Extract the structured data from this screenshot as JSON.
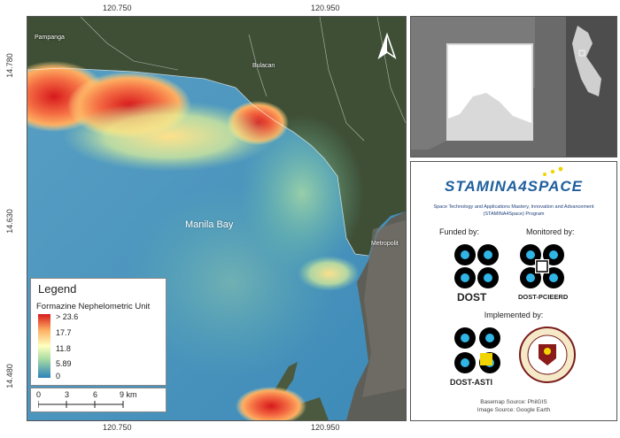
{
  "map": {
    "water_label": "Manila Bay",
    "towns": [
      "Pampanga",
      "Bulacan",
      "Metropolit"
    ]
  },
  "axes": {
    "top_ticks": [
      "120.750",
      "120.950"
    ],
    "bottom_ticks": [
      "120.750",
      "120.950"
    ],
    "left_ticks": [
      "14.780",
      "14.630",
      "14.480"
    ]
  },
  "legend": {
    "title": "Legend",
    "unit": "Formazine Nephelometric Unit",
    "values": [
      "> 23.6",
      "17.7",
      "11.8",
      "5.89",
      "0"
    ]
  },
  "scalebar": {
    "labels": [
      "0",
      "3",
      "6",
      "9 km"
    ]
  },
  "info": {
    "logo_text": "STAMINA4SPACE",
    "program_line1": "Space Technology and Applications Mastery, Innovation and Advancement",
    "program_line2": "(STAMINA4Space) Program",
    "funded_by": "Funded by:",
    "monitored_by": "Monitored by:",
    "dost": "DOST",
    "dost_pcieerd": "DOST-PCIEERD",
    "implemented_by": "Implemented by:",
    "dost_asti": "DOST-ASTI",
    "basemap_source": "Basemap Source: PhilGIS",
    "image_source": "Image Source: Google Earth"
  },
  "colors": {
    "water": "#4a93bd",
    "land": "#3f4f36",
    "ramp_high": "#d7191c",
    "ramp_mid": "#ffffbf",
    "ramp_low": "#2b83ba"
  }
}
